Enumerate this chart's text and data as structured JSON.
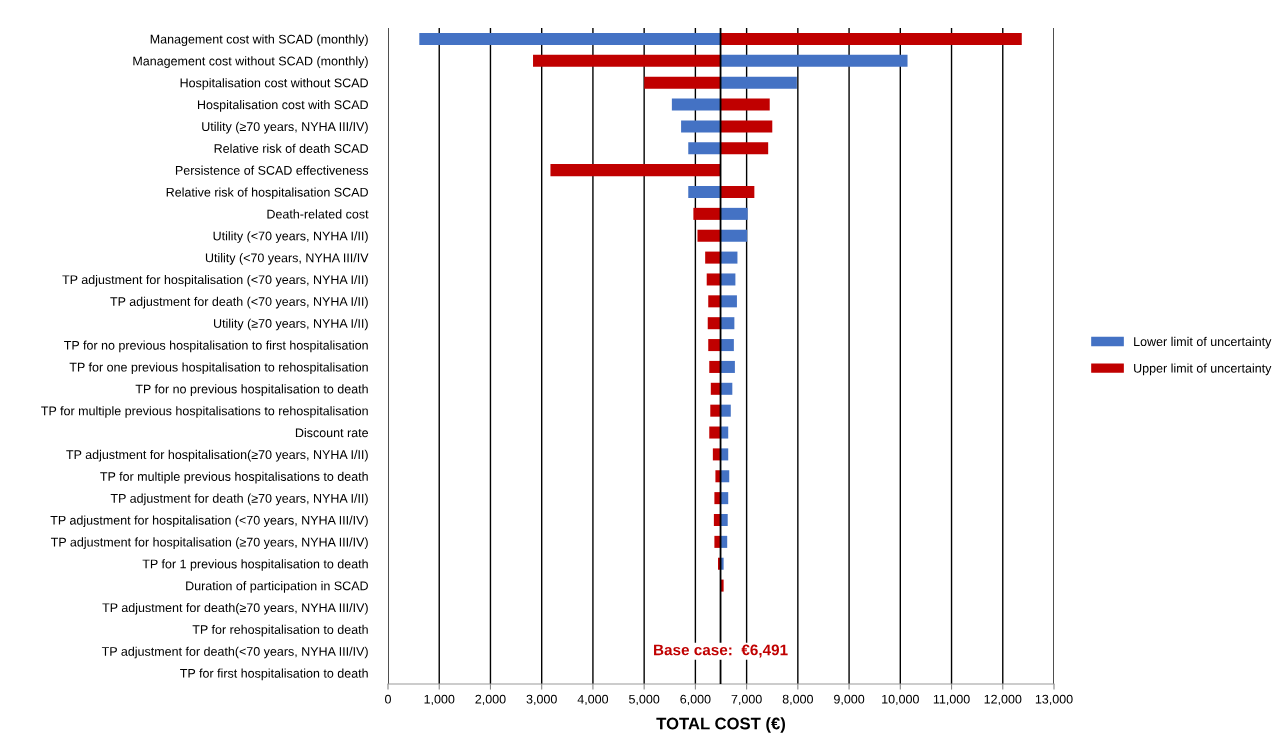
{
  "chart_data": {
    "type": "bar",
    "orientation": "horizontal",
    "categories": [
      "Management cost with SCAD (monthly)",
      "Management cost without SCAD (monthly)",
      "Hospitalisation cost without SCAD",
      "Hospitalisation cost with SCAD",
      "Utility (≥70 years, NYHA III/IV)",
      "Relative risk of death SCAD",
      "Persistence of SCAD effectiveness",
      "Relative risk of hospitalisation SCAD",
      "Death-related cost",
      "Utility (<70 years, NYHA I/II)",
      "Utility (<70 years, NYHA III/IV",
      "TP adjustment for hospitalisation (<70 years, NYHA I/II)",
      "TP adjustment for death (<70 years, NYHA I/II)",
      "Utility (≥70 years, NYHA I/II)",
      "TP for no previous hospitalisation to first hospitalisation",
      "TP for one previous hospitalisation to rehospitalisation",
      "TP for no previous hospitalisation to death",
      "TP for multiple previous hospitalisations to rehospitalisation",
      "Discount rate",
      "TP adjustment for hospitalisation(≥70 years, NYHA I/II)",
      "TP for multiple previous hospitalisations to death",
      "TP adjustment for death (≥70 years, NYHA I/II)",
      "TP adjustment for hospitalisation (<70 years, NYHA III/IV)",
      "TP adjustment for hospitalisation (≥70 years, NYHA III/IV)",
      "TP for 1 previous hospitalisation to death",
      "Duration of participation in SCAD",
      "TP adjustment for death(≥70 years, NYHA III/IV)",
      "TP for rehospitalisation to death",
      "TP adjustment for death(<70 years, NYHA III/IV)",
      "TP for first hospitalisation to death"
    ],
    "series": [
      {
        "name": "Lower limit of uncertainty",
        "color": "#4472c4",
        "base": [
          6491,
          6491,
          6491,
          6491,
          6491,
          6491,
          null,
          6491,
          6491,
          6491,
          6491,
          6491,
          6491,
          6491,
          6491,
          6491,
          6491,
          6491,
          6491,
          6491,
          6491,
          6491,
          6491,
          6491,
          6491,
          null,
          null,
          null,
          null,
          null
        ],
        "values": [
          -5880,
          3650,
          1490,
          -950,
          -770,
          -630,
          null,
          -630,
          530,
          520,
          330,
          290,
          320,
          270,
          260,
          280,
          230,
          200,
          150,
          150,
          170,
          150,
          140,
          130,
          60,
          null,
          null,
          null,
          null,
          null
        ]
      },
      {
        "name": "Upper limit of uncertainty",
        "color": "#c00000",
        "base": [
          6491,
          6491,
          6491,
          6491,
          6491,
          6491,
          6491,
          6491,
          6491,
          6491,
          6491,
          6491,
          6491,
          6491,
          6491,
          6491,
          6491,
          6491,
          6491,
          6491,
          6491,
          6491,
          6491,
          6491,
          6491,
          6491,
          null,
          null,
          null,
          null
        ],
        "values": [
          5880,
          -3660,
          -1490,
          960,
          1010,
          930,
          -3320,
          660,
          -530,
          -450,
          -300,
          -270,
          -240,
          -250,
          -240,
          -220,
          -190,
          -200,
          -220,
          -150,
          -100,
          -120,
          -130,
          -120,
          -50,
          60,
          null,
          null,
          null,
          null
        ]
      }
    ],
    "xlabel": "TOTAL COST (€)",
    "xlim": [
      0,
      13000
    ],
    "xticks": [
      {
        "value": 0,
        "label": "0"
      },
      {
        "value": 1000,
        "label": "1,000"
      },
      {
        "value": 2000,
        "label": "2,000"
      },
      {
        "value": 3000,
        "label": "3,000"
      },
      {
        "value": 4000,
        "label": "4,000"
      },
      {
        "value": 5000,
        "label": "5,000"
      },
      {
        "value": 6000,
        "label": "6,000"
      },
      {
        "value": 7000,
        "label": "7,000"
      },
      {
        "value": 8000,
        "label": "8,000"
      },
      {
        "value": 9000,
        "label": "9,000"
      },
      {
        "value": 10000,
        "label": "10,000"
      },
      {
        "value": 11000,
        "label": "11,000"
      },
      {
        "value": 12000,
        "label": "12,000"
      },
      {
        "value": 13000,
        "label": "13,000"
      }
    ],
    "ref_lines": [
      {
        "axis": "x",
        "value": 6491,
        "label": "Base case:  €6,491",
        "color": "#000000"
      }
    ],
    "grid": "x",
    "legend": "right"
  }
}
